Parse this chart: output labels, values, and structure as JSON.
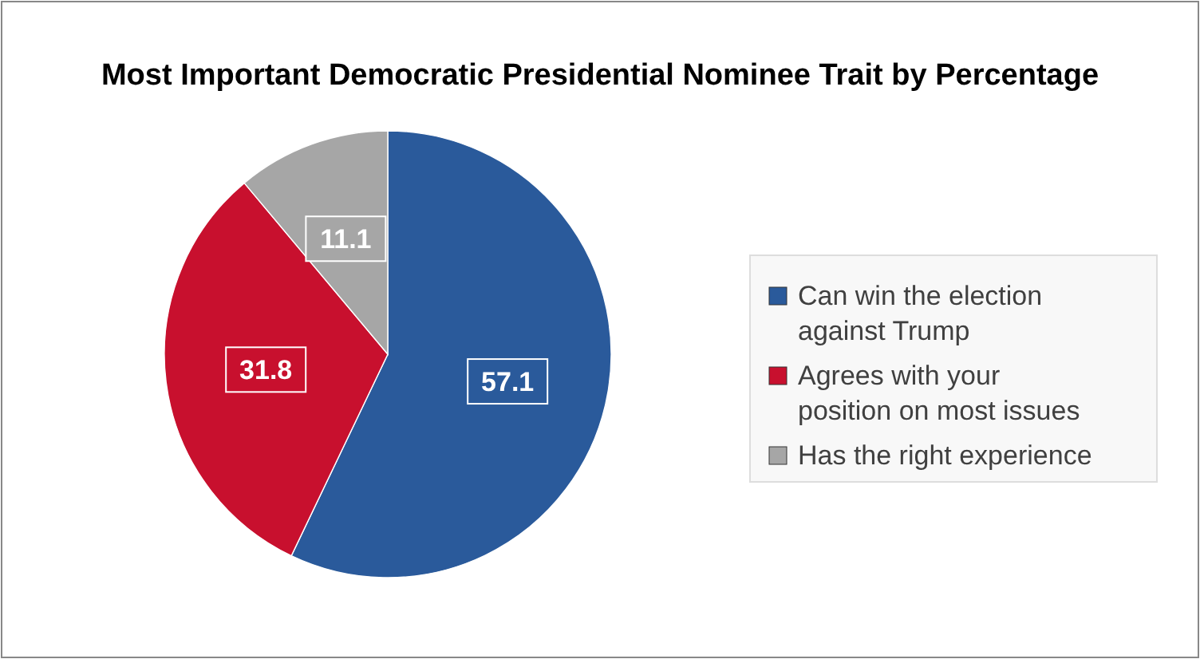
{
  "chart_data": {
    "type": "pie",
    "title": "Most Important Democratic Presidential Nominee Trait by Percentage",
    "categories": [
      "Can win the election against Trump",
      "Agrees with your position on most issues",
      "Has the right experience"
    ],
    "values": [
      57.1,
      31.8,
      11.1
    ],
    "colors": [
      "#2a5a9b",
      "#c8102e",
      "#a6a6a6"
    ],
    "data_labels": true,
    "legend": "right"
  }
}
